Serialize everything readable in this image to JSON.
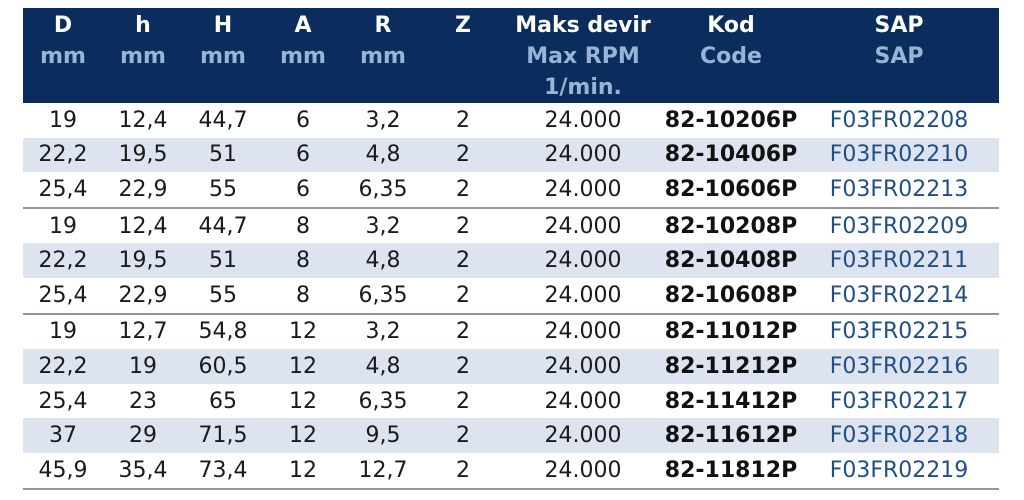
{
  "headers": [
    {
      "lines": [
        "D",
        "mm"
      ]
    },
    {
      "lines": [
        "h",
        "mm"
      ]
    },
    {
      "lines": [
        "H",
        "mm"
      ]
    },
    {
      "lines": [
        "A",
        "mm"
      ]
    },
    {
      "lines": [
        "R",
        "mm"
      ]
    },
    {
      "lines": [
        "Z"
      ]
    },
    {
      "lines": [
        "Maks devir",
        "Max RPM",
        "1/min."
      ]
    },
    {
      "lines": [
        "Kod",
        "Code"
      ]
    },
    {
      "lines": [
        "SAP",
        "SAP"
      ]
    }
  ],
  "rows": [
    {
      "group": 1,
      "D": "19",
      "h": "12,4",
      "H": "44,7",
      "A": "6",
      "R": "3,2",
      "Z": "2",
      "rpm": "24.000",
      "kod": "82-10206P",
      "sap": "F03FR02208"
    },
    {
      "group": 1,
      "D": "22,2",
      "h": "19,5",
      "H": "51",
      "A": "6",
      "R": "4,8",
      "Z": "2",
      "rpm": "24.000",
      "kod": "82-10406P",
      "sap": "F03FR02210"
    },
    {
      "group": 1,
      "D": "25,4",
      "h": "22,9",
      "H": "55",
      "A": "6",
      "R": "6,35",
      "Z": "2",
      "rpm": "24.000",
      "kod": "82-10606P",
      "sap": "F03FR02213"
    },
    {
      "group": 2,
      "D": "19",
      "h": "12,4",
      "H": "44,7",
      "A": "8",
      "R": "3,2",
      "Z": "2",
      "rpm": "24.000",
      "kod": "82-10208P",
      "sap": "F03FR02209"
    },
    {
      "group": 2,
      "D": "22,2",
      "h": "19,5",
      "H": "51",
      "A": "8",
      "R": "4,8",
      "Z": "2",
      "rpm": "24.000",
      "kod": "82-10408P",
      "sap": "F03FR02211"
    },
    {
      "group": 2,
      "D": "25,4",
      "h": "22,9",
      "H": "55",
      "A": "8",
      "R": "6,35",
      "Z": "2",
      "rpm": "24.000",
      "kod": "82-10608P",
      "sap": "F03FR02214"
    },
    {
      "group": 3,
      "D": "19",
      "h": "12,7",
      "H": "54,8",
      "A": "12",
      "R": "3,2",
      "Z": "2",
      "rpm": "24.000",
      "kod": "82-11012P",
      "sap": "F03FR02215"
    },
    {
      "group": 3,
      "D": "22,2",
      "h": "19",
      "H": "60,5",
      "A": "12",
      "R": "4,8",
      "Z": "2",
      "rpm": "24.000",
      "kod": "82-11212P",
      "sap": "F03FR02216"
    },
    {
      "group": 3,
      "D": "25,4",
      "h": "23",
      "H": "65",
      "A": "12",
      "R": "6,35",
      "Z": "2",
      "rpm": "24.000",
      "kod": "82-11412P",
      "sap": "F03FR02217"
    },
    {
      "group": 3,
      "D": "37",
      "h": "29",
      "H": "71,5",
      "A": "12",
      "R": "9,5",
      "Z": "2",
      "rpm": "24.000",
      "kod": "82-11612P",
      "sap": "F03FR02218"
    },
    {
      "group": 3,
      "D": "45,9",
      "h": "35,4",
      "H": "73,4",
      "A": "12",
      "R": "12,7",
      "Z": "2",
      "rpm": "24.000",
      "kod": "82-11812P",
      "sap": "F03FR02219"
    }
  ],
  "colors": {
    "header_bg": "#0a2d5e",
    "header_text": "#ffffff",
    "header_subtext": "#9ab4d6",
    "row_shade": "#dde4ef",
    "sap_text": "#1f4f86"
  }
}
